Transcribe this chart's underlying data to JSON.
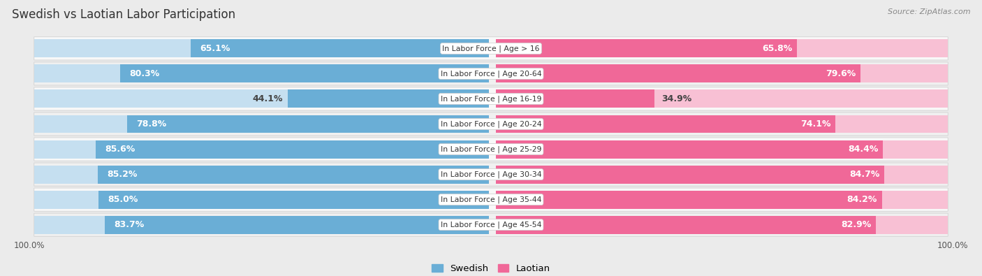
{
  "title": "Swedish vs Laotian Labor Participation",
  "source": "Source: ZipAtlas.com",
  "categories": [
    "In Labor Force | Age > 16",
    "In Labor Force | Age 20-64",
    "In Labor Force | Age 16-19",
    "In Labor Force | Age 20-24",
    "In Labor Force | Age 25-29",
    "In Labor Force | Age 30-34",
    "In Labor Force | Age 35-44",
    "In Labor Force | Age 45-54"
  ],
  "swedish_values": [
    65.1,
    80.3,
    44.1,
    78.8,
    85.6,
    85.2,
    85.0,
    83.7
  ],
  "laotian_values": [
    65.8,
    79.6,
    34.9,
    74.1,
    84.4,
    84.7,
    84.2,
    82.9
  ],
  "max_val": 100.0,
  "swedish_color": "#6aaed6",
  "swedish_color_light": "#c5dff0",
  "laotian_color": "#f06898",
  "laotian_color_light": "#f8c0d4",
  "bg_color": "#ebebeb",
  "row_bg_even": "#f8f8f8",
  "row_bg_odd": "#f0f0f0",
  "label_fontsize": 9,
  "title_fontsize": 12,
  "bar_height": 0.72,
  "legend_swedish": "Swedish",
  "legend_laotian": "Laotian"
}
